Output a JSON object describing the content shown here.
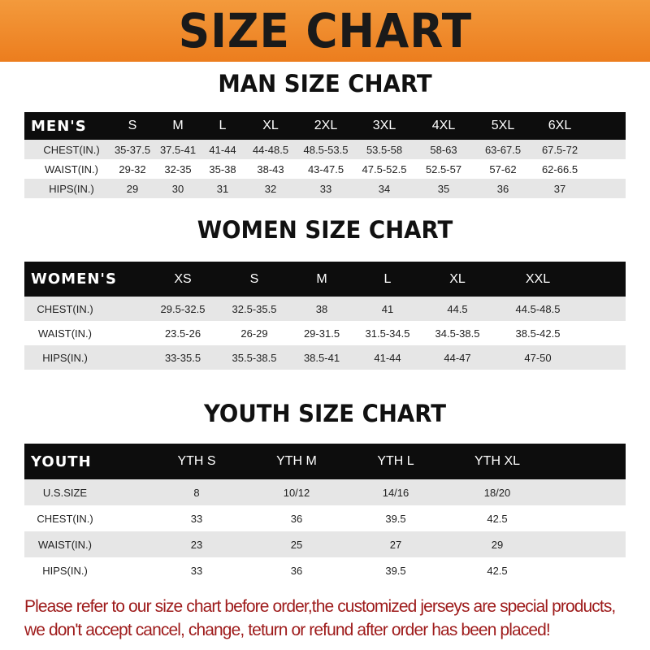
{
  "banner_title": "SIZE CHART",
  "colors": {
    "banner": "#ec7d1e",
    "header_row": "#0d0d0d",
    "stripe": "#e6e6e6",
    "note_text": "#9e1b1b"
  },
  "men": {
    "title": "MAN SIZE CHART",
    "header": [
      "MEN'S",
      "S",
      "M",
      "L",
      "XL",
      "2XL",
      "3XL",
      "4XL",
      "5XL",
      "6XL"
    ],
    "rows": [
      [
        "CHEST(IN.)",
        "35-37.5",
        "37.5-41",
        "41-44",
        "44-48.5",
        "48.5-53.5",
        "53.5-58",
        "58-63",
        "63-67.5",
        "67.5-72"
      ],
      [
        "WAIST(IN.)",
        "29-32",
        "32-35",
        "35-38",
        "38-43",
        "43-47.5",
        "47.5-52.5",
        "52.5-57",
        "57-62",
        "62-66.5"
      ],
      [
        "HIPS(IN.)",
        "29",
        "30",
        "31",
        "32",
        "33",
        "34",
        "35",
        "36",
        "37"
      ]
    ]
  },
  "women": {
    "title": "WOMEN SIZE CHART",
    "header": [
      "WOMEN'S",
      "XS",
      "S",
      "M",
      "L",
      "XL",
      "XXL"
    ],
    "rows": [
      [
        "CHEST(IN.)",
        "29.5-32.5",
        "32.5-35.5",
        "38",
        "41",
        "44.5",
        "44.5-48.5"
      ],
      [
        "WAIST(IN.)",
        "23.5-26",
        "26-29",
        "29-31.5",
        "31.5-34.5",
        "34.5-38.5",
        "38.5-42.5"
      ],
      [
        "HIPS(IN.)",
        "33-35.5",
        "35.5-38.5",
        "38.5-41",
        "41-44",
        "44-47",
        "47-50"
      ]
    ]
  },
  "youth": {
    "title": "YOUTH SIZE CHART",
    "header": [
      "YOUTH",
      "YTH S",
      "YTH M",
      "YTH L",
      "YTH XL"
    ],
    "rows": [
      [
        "U.S.SIZE",
        "8",
        "10/12",
        "14/16",
        "18/20"
      ],
      [
        "CHEST(IN.)",
        "33",
        "36",
        "39.5",
        "42.5"
      ],
      [
        "WAIST(IN.)",
        "23",
        "25",
        "27",
        "29"
      ],
      [
        "HIPS(IN.)",
        "33",
        "36",
        "39.5",
        "42.5"
      ]
    ]
  },
  "note": {
    "line1": "Please refer to our size chart before order,the customized jerseys are special products,",
    "line2": "we don't accept cancel, change, teturn or refund after order has been placed!"
  }
}
